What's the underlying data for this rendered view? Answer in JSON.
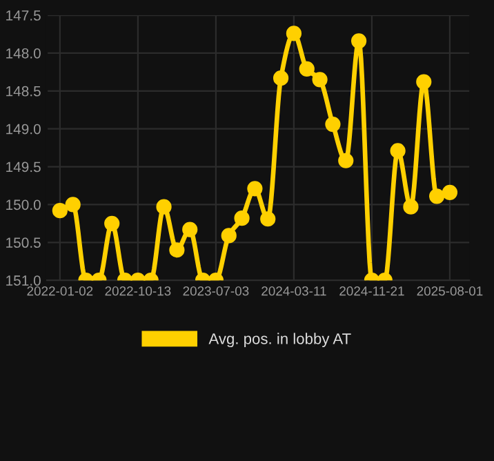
{
  "chart_data": {
    "type": "line",
    "categories": [
      "2022-01-02",
      null,
      null,
      null,
      null,
      null,
      "2022-10-13",
      null,
      null,
      null,
      null,
      null,
      "2023-07-03",
      null,
      null,
      null,
      null,
      null,
      "2024-03-11",
      null,
      null,
      null,
      null,
      null,
      "2024-11-21",
      null,
      null,
      null,
      null,
      null,
      "2025-08-01"
    ],
    "series": [
      {
        "name": "Avg. pos. in lobby AT",
        "color": "#ffd000",
        "values": [
          150.08,
          150.0,
          151.0,
          151.0,
          150.25,
          151.0,
          151.0,
          151.0,
          150.03,
          150.6,
          150.33,
          151.0,
          151.0,
          150.41,
          150.18,
          149.79,
          150.19,
          148.33,
          147.74,
          148.21,
          148.35,
          148.94,
          149.42,
          147.84,
          151.0,
          151.0,
          149.29,
          150.03,
          148.38,
          149.89,
          149.84
        ]
      }
    ],
    "ylim": [
      151.0,
      147.5
    ],
    "yticks": [
      147.5,
      {
        "value": 148,
        "label": "148.0"
      },
      148.5,
      {
        "value": 149,
        "label": "149.0"
      },
      149.5,
      {
        "value": 150,
        "label": "150.0"
      },
      150.5,
      {
        "value": 151,
        "label": "151.0"
      }
    ],
    "grid": true,
    "legend": "bottom",
    "marker": "circle",
    "line_style": "solid"
  }
}
